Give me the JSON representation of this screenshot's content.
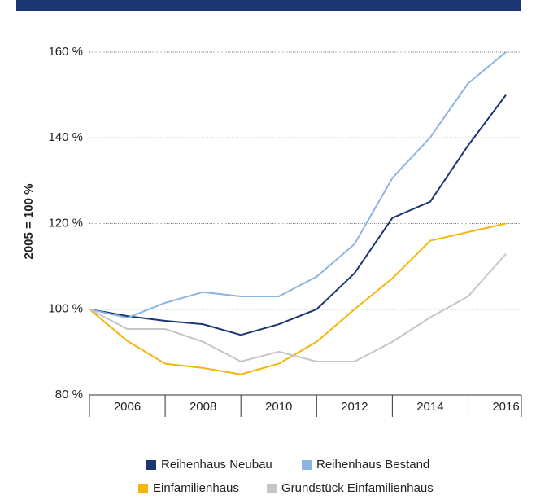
{
  "chart_data": {
    "type": "line",
    "y_label": "2005 = 100 %",
    "x": [
      2005,
      2006,
      2007,
      2008,
      2009,
      2010,
      2011,
      2012,
      2013,
      2014,
      2015,
      2016
    ],
    "xlim": [
      2005,
      2016
    ],
    "xticks": [
      2006,
      2008,
      2010,
      2012,
      2014,
      2016
    ],
    "ylim": [
      80,
      160
    ],
    "yticks": [
      {
        "value": 80,
        "label": "80 %"
      },
      {
        "value": 100,
        "label": "100 %"
      },
      {
        "value": 120,
        "label": "120 %"
      },
      {
        "value": 140,
        "label": "140 %"
      },
      {
        "value": 160,
        "label": "160 %"
      }
    ],
    "grid": true,
    "series": [
      {
        "name": "Reihenhaus Neubau",
        "color": "#1b3670",
        "values": [
          100,
          98.4,
          97.3,
          96.5,
          94,
          96.5,
          100,
          108.4,
          121.3,
          125.1,
          138.2,
          150
        ]
      },
      {
        "name": "Reihenhaus Bestand",
        "color": "#8db5e2",
        "values": [
          100,
          98,
          101.5,
          104,
          103,
          103,
          107.6,
          115.2,
          130.6,
          140.1,
          152.7,
          160
        ]
      },
      {
        "name": "Einfamilienhaus",
        "color": "#f5b50a",
        "values": [
          100,
          92.6,
          87.3,
          86.3,
          84.8,
          87.3,
          92.4,
          100,
          107.2,
          116,
          118,
          120
        ]
      },
      {
        "name": "Grundstück Einfamilienhaus",
        "color": "#c6c6c6",
        "values": [
          100,
          95.4,
          95.4,
          92.4,
          87.8,
          90.1,
          87.8,
          87.8,
          92.4,
          98.1,
          103,
          112.9
        ]
      }
    ]
  }
}
